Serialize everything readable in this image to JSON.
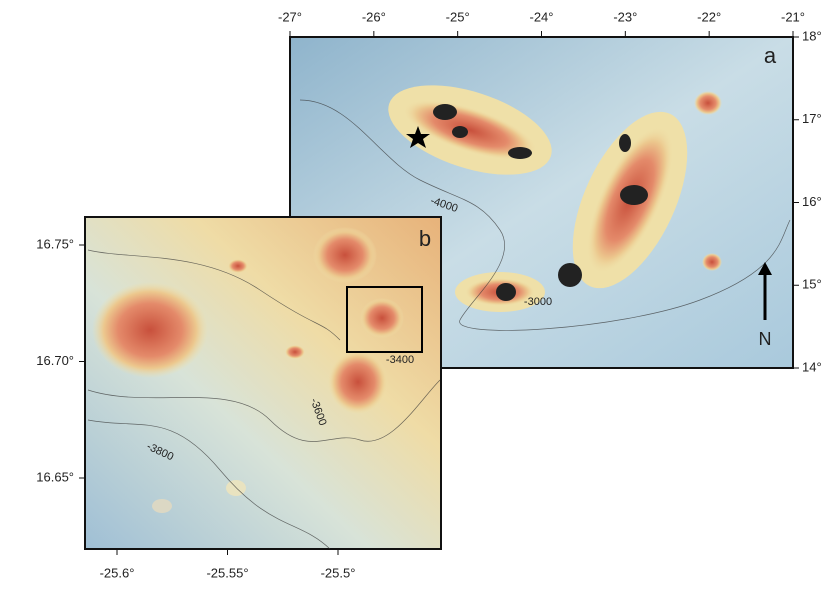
{
  "panel_a": {
    "label": "a",
    "x_ticks": [
      "-27°",
      "-26°",
      "-25°",
      "-24°",
      "-23°",
      "-22°",
      "-21°"
    ],
    "y_ticks": [
      "18°",
      "17°",
      "16°",
      "15°",
      "14°"
    ],
    "contour_labels": [
      "-4000",
      "-3000"
    ],
    "north": "N"
  },
  "panel_b": {
    "label": "b",
    "x_ticks": [
      "-25.6°",
      "-25.55°",
      "-25.5°"
    ],
    "y_ticks": [
      "16.75°",
      "16.70°",
      "16.65°"
    ],
    "contour_labels": [
      "-3400",
      "-3600",
      "-3800"
    ]
  }
}
